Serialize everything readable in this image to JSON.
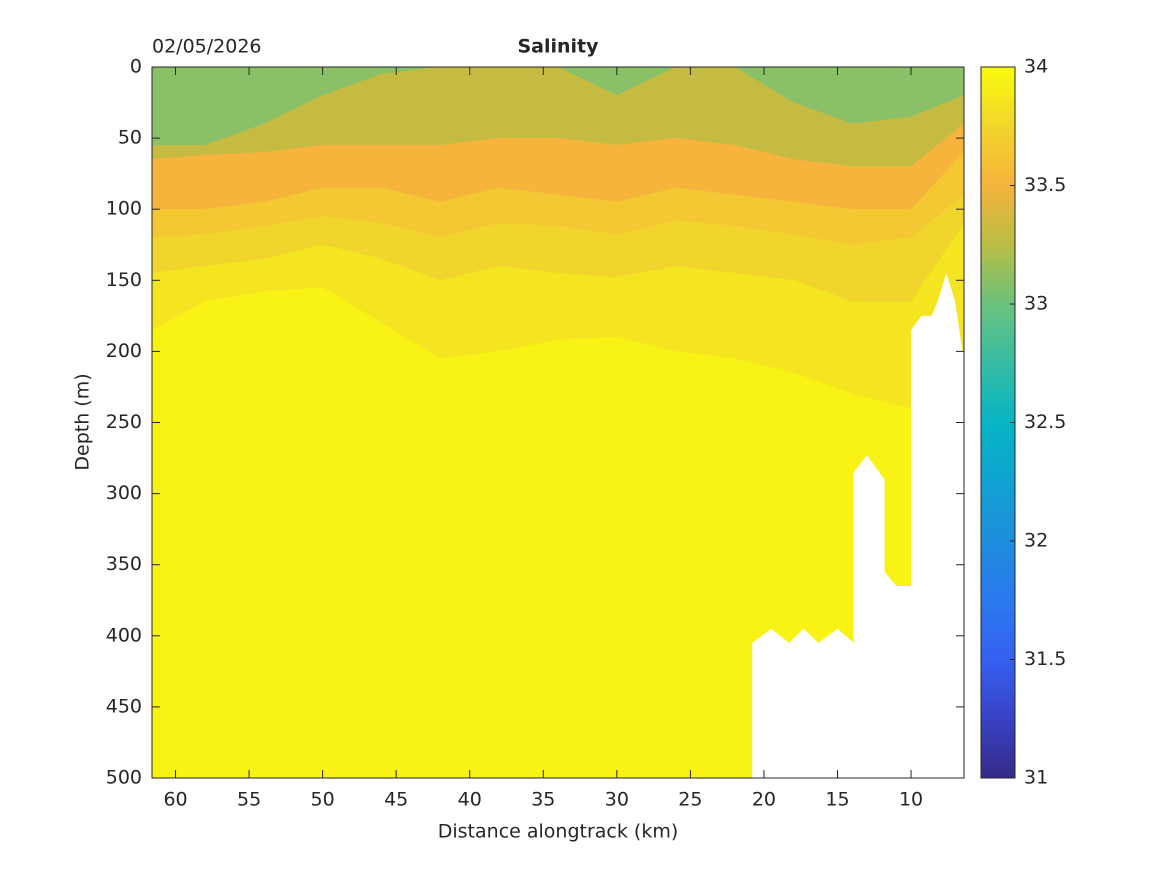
{
  "chart_data": {
    "type": "contourf",
    "title": "Salinity",
    "date": "02/05/2026",
    "xlabel": "Distance alongtrack (km)",
    "ylabel": "Depth (m)",
    "x": [
      61.6,
      58,
      54,
      50,
      46,
      42,
      38,
      34,
      30,
      26,
      22,
      18,
      14,
      10,
      6.4
    ],
    "levels": [
      33.2,
      33.4,
      33.6,
      33.7,
      33.8,
      33.9
    ],
    "contour_depths": [
      [
        55,
        55,
        40,
        20,
        5,
        0,
        0,
        0,
        20,
        0,
        0,
        25,
        40,
        35,
        20
      ],
      [
        65,
        62,
        60,
        55,
        55,
        55,
        50,
        50,
        55,
        50,
        55,
        65,
        70,
        70,
        40
      ],
      [
        100,
        100,
        95,
        85,
        85,
        95,
        85,
        90,
        95,
        85,
        90,
        95,
        100,
        100,
        60
      ],
      [
        120,
        118,
        112,
        105,
        110,
        120,
        110,
        112,
        118,
        108,
        112,
        118,
        125,
        120,
        90
      ],
      [
        145,
        140,
        135,
        125,
        135,
        150,
        140,
        145,
        148,
        140,
        145,
        150,
        165,
        165,
        110
      ],
      [
        185,
        165,
        158,
        155,
        180,
        205,
        200,
        192,
        190,
        200,
        205,
        215,
        230,
        240,
        200
      ]
    ],
    "band_values": [
      33.1,
      33.3,
      33.5,
      33.65,
      33.75,
      33.85,
      33.95
    ],
    "no_data": {
      "x": [
        20.8,
        20.8,
        19.5,
        18.3,
        17.3,
        16.3,
        15,
        13.9,
        13.9,
        13,
        11.8,
        11.8,
        11,
        10,
        10,
        9.3,
        8.6,
        8.2,
        7.6,
        7,
        6.5,
        6.4,
        6.4
      ],
      "depth": [
        500,
        405,
        395,
        405,
        395,
        405,
        395,
        405,
        285,
        273,
        290,
        355,
        365,
        365,
        185,
        175,
        175,
        165,
        145,
        165,
        200,
        200,
        500
      ]
    },
    "xlim": [
      61.6,
      6.4
    ],
    "xticks": [
      60,
      55,
      50,
      45,
      40,
      35,
      30,
      25,
      20,
      15,
      10
    ],
    "ylim": [
      0,
      500
    ],
    "yticks": [
      0,
      50,
      100,
      150,
      200,
      250,
      300,
      350,
      400,
      450,
      500
    ],
    "y_reversed": true,
    "clim": [
      31,
      34
    ],
    "cticks": [
      31,
      31.5,
      32,
      32.5,
      33,
      33.5,
      34
    ],
    "colormap": [
      "#352a87",
      "#3842c4",
      "#3660f0",
      "#2a79ef",
      "#1f8ddc",
      "#10a3d2",
      "#06b5c4",
      "#37bca4",
      "#6ac27d",
      "#b9bd45",
      "#f6b43c",
      "#f2d52c",
      "#f9fb0e"
    ]
  }
}
